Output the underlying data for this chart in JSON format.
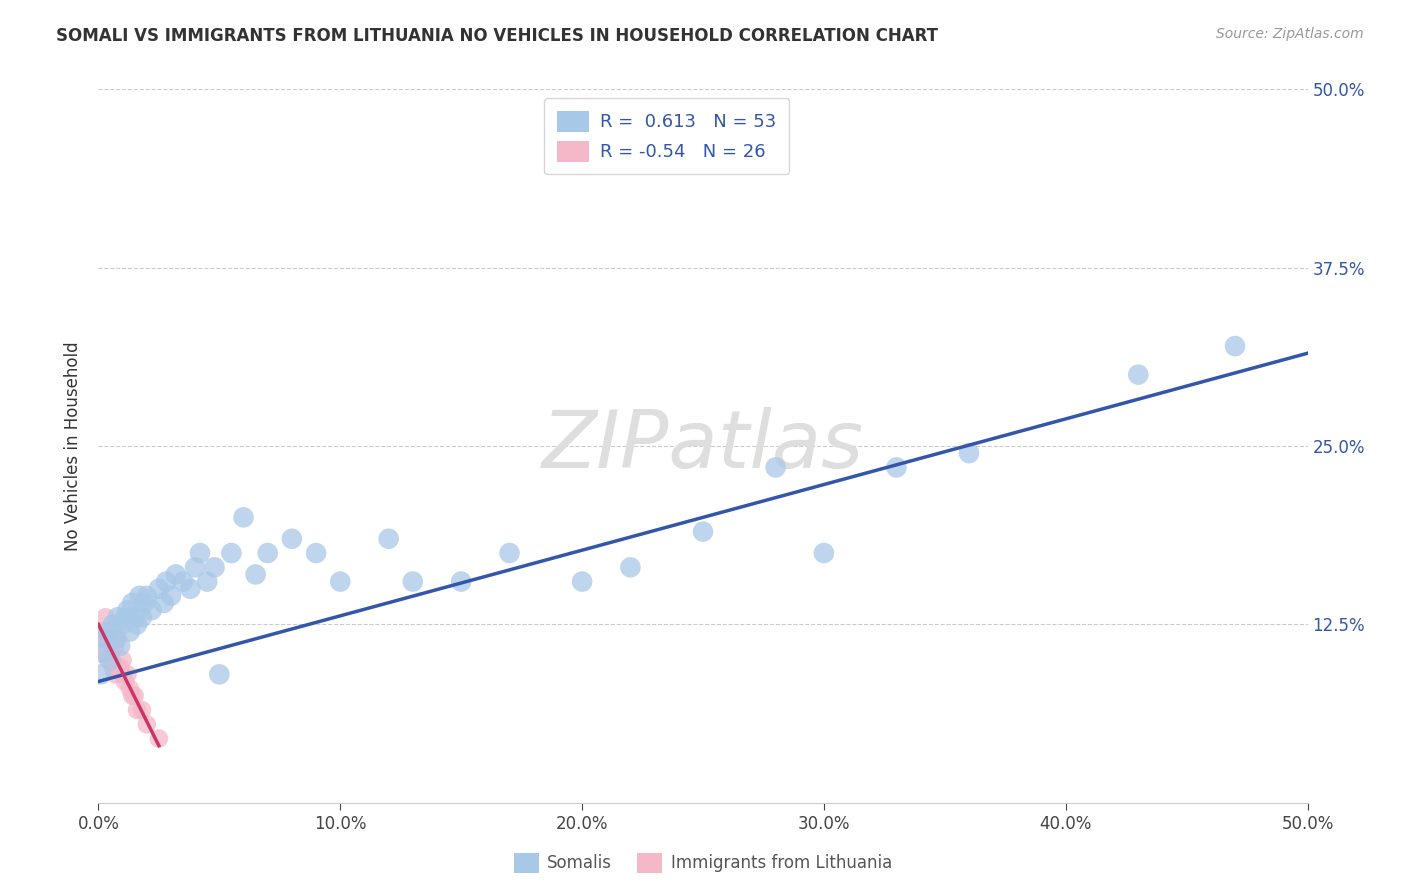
{
  "title": "SOMALI VS IMMIGRANTS FROM LITHUANIA NO VEHICLES IN HOUSEHOLD CORRELATION CHART",
  "source": "Source: ZipAtlas.com",
  "ylabel": "No Vehicles in Household",
  "xlabel": "",
  "legend_label_1": "Somalis",
  "legend_label_2": "Immigrants from Lithuania",
  "R1": 0.613,
  "N1": 53,
  "R2": -0.54,
  "N2": 26,
  "xlim": [
    0.0,
    0.5
  ],
  "ylim": [
    0.0,
    0.5
  ],
  "yticks": [
    0.0,
    0.125,
    0.25,
    0.375,
    0.5
  ],
  "ytick_labels": [
    "",
    "12.5%",
    "25.0%",
    "37.5%",
    "50.0%"
  ],
  "xtick_vals": [
    0.0,
    0.1,
    0.2,
    0.3,
    0.4,
    0.5
  ],
  "xtick_labels": [
    "0.0%",
    "10.0%",
    "20.0%",
    "30.0%",
    "40.0%",
    "50.0%"
  ],
  "color_somali": "#a8c8e8",
  "color_lithuania": "#f4b8c8",
  "color_line_somali": "#3355aa",
  "color_line_lithuania": "#cc3366",
  "color_text_blue": "#3355aa",
  "color_tick_right": "#3355aa",
  "background_color": "#ffffff",
  "watermark": "ZIPatlas",
  "grid_color": "#cccccc",
  "somali_x": [
    0.001,
    0.002,
    0.003,
    0.004,
    0.005,
    0.006,
    0.007,
    0.008,
    0.009,
    0.01,
    0.011,
    0.012,
    0.013,
    0.014,
    0.015,
    0.016,
    0.017,
    0.018,
    0.019,
    0.02,
    0.022,
    0.025,
    0.027,
    0.028,
    0.03,
    0.032,
    0.035,
    0.038,
    0.04,
    0.042,
    0.045,
    0.048,
    0.05,
    0.055,
    0.06,
    0.065,
    0.07,
    0.08,
    0.09,
    0.1,
    0.12,
    0.13,
    0.15,
    0.17,
    0.2,
    0.22,
    0.25,
    0.28,
    0.3,
    0.33,
    0.36,
    0.43,
    0.47
  ],
  "somali_y": [
    0.09,
    0.105,
    0.115,
    0.12,
    0.1,
    0.125,
    0.115,
    0.13,
    0.11,
    0.125,
    0.13,
    0.135,
    0.12,
    0.14,
    0.13,
    0.125,
    0.145,
    0.13,
    0.14,
    0.145,
    0.135,
    0.15,
    0.14,
    0.155,
    0.145,
    0.16,
    0.155,
    0.15,
    0.165,
    0.175,
    0.155,
    0.165,
    0.09,
    0.175,
    0.2,
    0.16,
    0.175,
    0.185,
    0.175,
    0.155,
    0.185,
    0.155,
    0.155,
    0.175,
    0.155,
    0.165,
    0.19,
    0.235,
    0.175,
    0.235,
    0.245,
    0.3,
    0.32
  ],
  "lithuania_x": [
    0.001,
    0.002,
    0.003,
    0.003,
    0.004,
    0.004,
    0.005,
    0.005,
    0.006,
    0.006,
    0.007,
    0.007,
    0.008,
    0.008,
    0.009,
    0.01,
    0.01,
    0.011,
    0.012,
    0.013,
    0.014,
    0.015,
    0.016,
    0.018,
    0.02,
    0.025
  ],
  "lithuania_y": [
    0.12,
    0.115,
    0.105,
    0.13,
    0.1,
    0.115,
    0.105,
    0.12,
    0.095,
    0.115,
    0.09,
    0.11,
    0.095,
    0.115,
    0.095,
    0.09,
    0.1,
    0.085,
    0.09,
    0.08,
    0.075,
    0.075,
    0.065,
    0.065,
    0.055,
    0.045
  ],
  "line1_x0": 0.0,
  "line1_y0": 0.085,
  "line1_x1": 0.5,
  "line1_y1": 0.315,
  "line2_x0": 0.0,
  "line2_y0": 0.125,
  "line2_x1": 0.025,
  "line2_y1": 0.04
}
